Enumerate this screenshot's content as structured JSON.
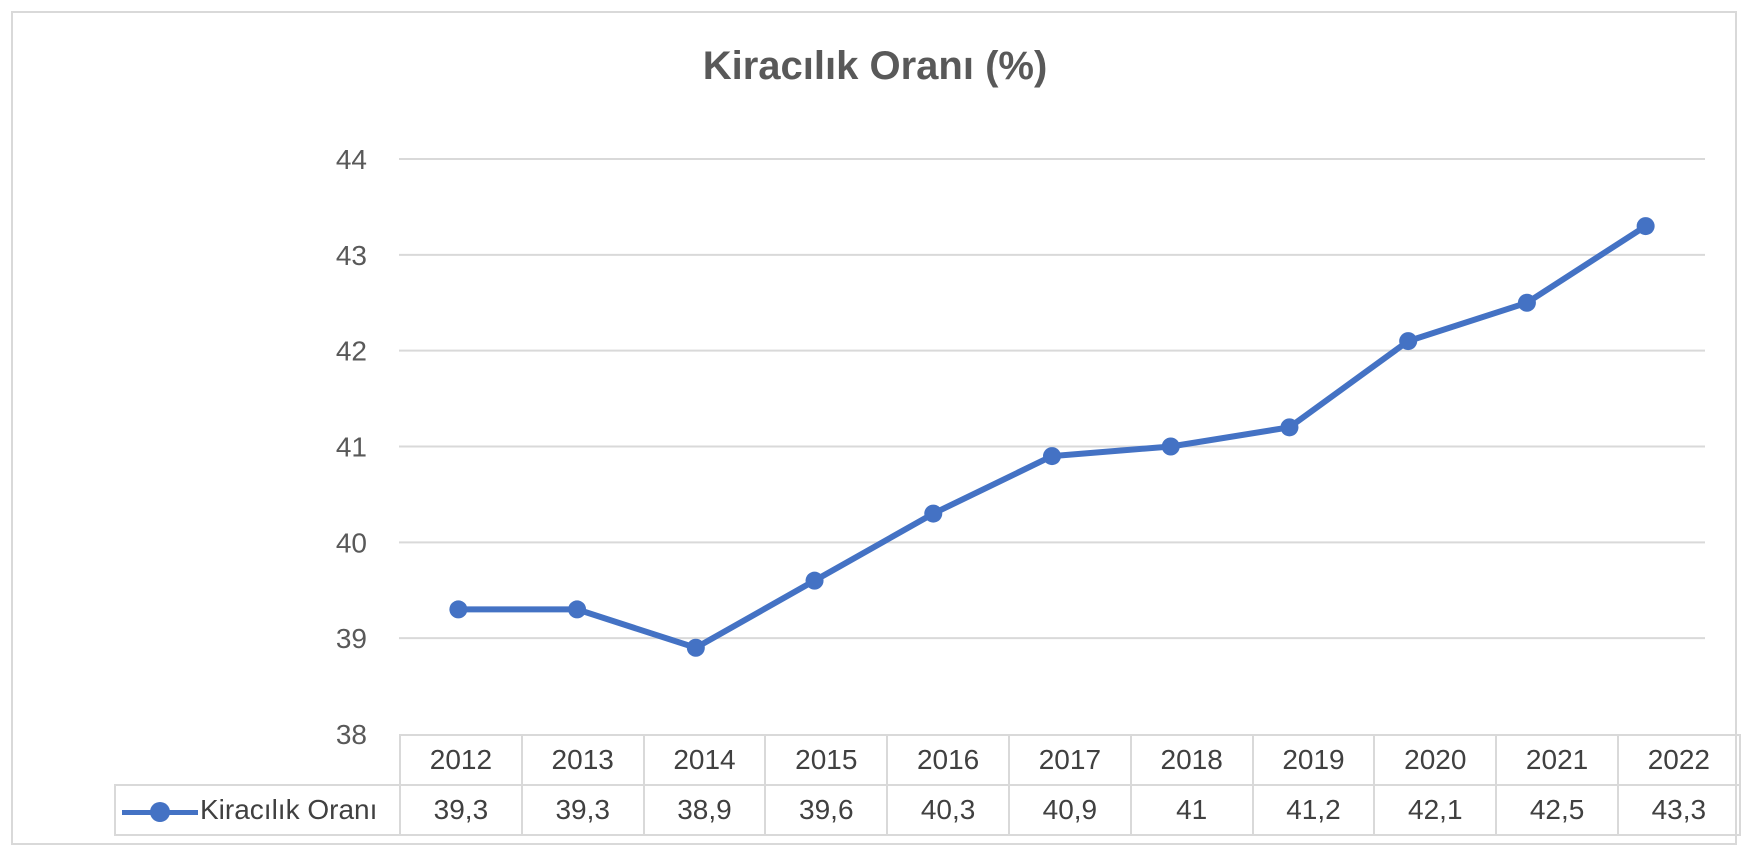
{
  "chart_data": {
    "type": "line",
    "title": "Kiracılık Oranı (%)",
    "categories": [
      "2012",
      "2013",
      "2014",
      "2015",
      "2016",
      "2017",
      "2018",
      "2019",
      "2020",
      "2021",
      "2022"
    ],
    "series": [
      {
        "name": "Kiracılık Oranı",
        "values": [
          39.3,
          39.3,
          38.9,
          39.6,
          40.3,
          40.9,
          41,
          41.2,
          42.1,
          42.5,
          43.3
        ],
        "value_labels": [
          "39,3",
          "39,3",
          "38,9",
          "39,6",
          "40,3",
          "40,9",
          "41",
          "41,2",
          "42,1",
          "42,5",
          "43,3"
        ]
      }
    ],
    "ylim": [
      38,
      44
    ],
    "yticks": [
      38,
      39,
      40,
      41,
      42,
      43,
      44
    ],
    "grid": true,
    "legend": "data-table",
    "color": "#4472c4"
  }
}
